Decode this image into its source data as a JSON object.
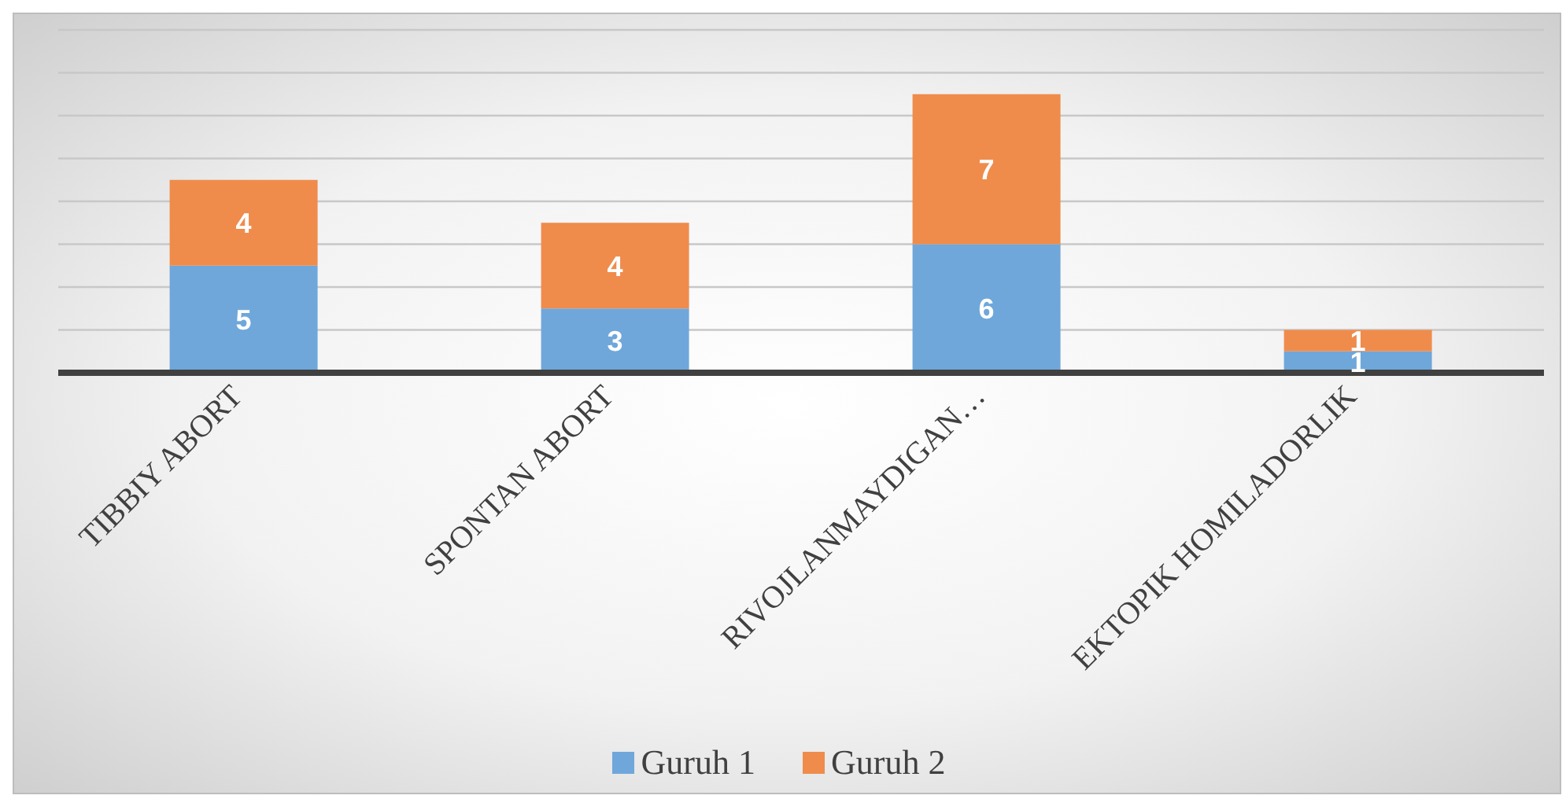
{
  "chart_data": {
    "type": "bar",
    "stacked": true,
    "categories": [
      "TIBBIY ABORT",
      "SPONTAN ABORT",
      "RIVOJLANMAYDIGAN…",
      "EKTOPIK HOMILADORLIK"
    ],
    "series": [
      {
        "name": "Guruh 1",
        "color": "#6fa7da",
        "values": [
          5,
          3,
          6,
          1
        ]
      },
      {
        "name": "Guruh 2",
        "color": "#ef8c4c",
        "values": [
          4,
          4,
          7,
          1
        ]
      }
    ],
    "ylim": [
      0,
      16
    ],
    "tick_labels": "x",
    "grid": "y",
    "data_labels": true,
    "legend": "bottom"
  }
}
